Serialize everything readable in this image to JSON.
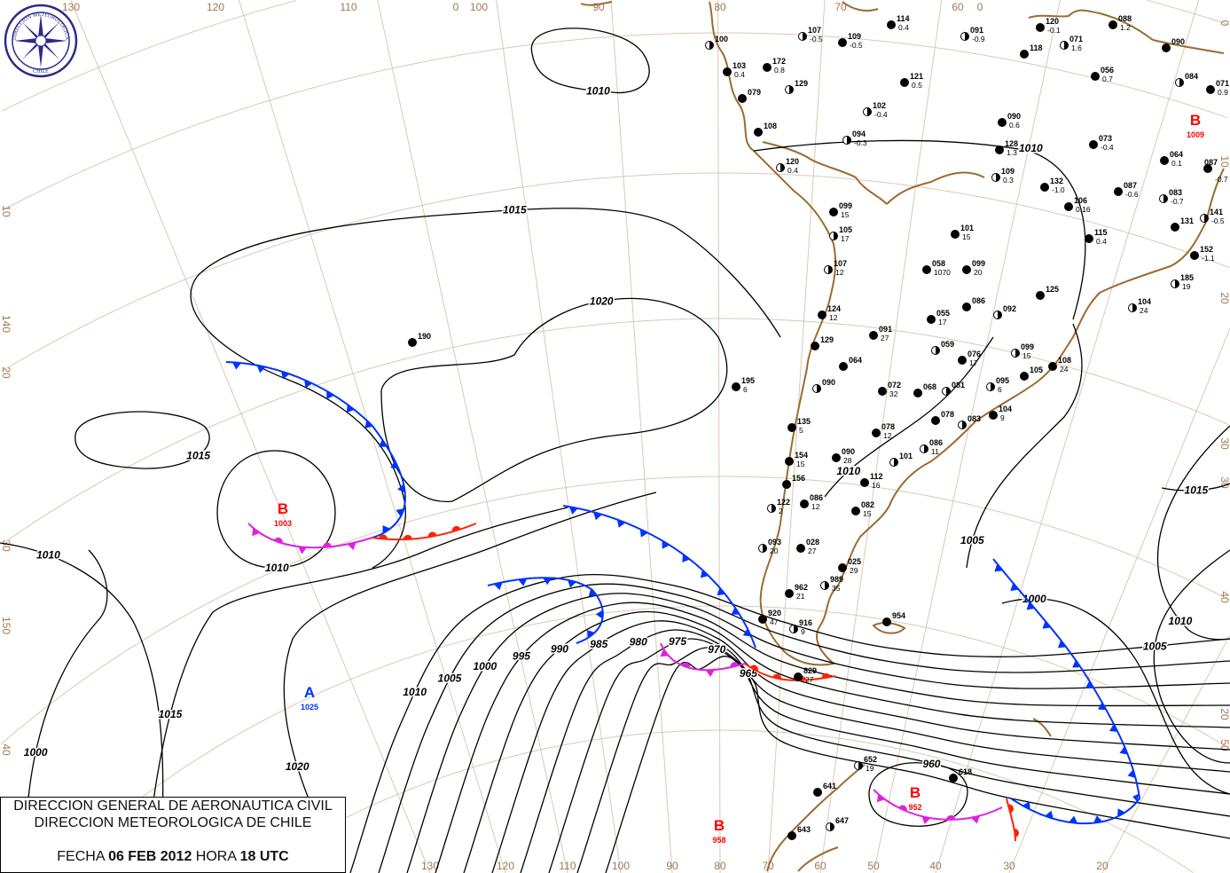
{
  "header": {
    "org_line1": "DIRECCION GENERAL DE AERONAUTICA CIVIL",
    "org_line2": "DIRECCION METEOROLOGICA DE CHILE",
    "date_label": "FECHA",
    "date": "06 FEB 2012",
    "time_label": "HORA",
    "time": "18 UTC"
  },
  "logo": {
    "text_top": "DIRECCION METEOROLOGICA",
    "text_bottom": "CHILE"
  },
  "colors": {
    "cold_front": "#0033ff",
    "warm_front": "#ff2200",
    "occluded_front": "#dd22dd",
    "low": "#ff0000",
    "high": "#0033ff",
    "coastline": "#9c6b30",
    "grid": "#d9c9b4"
  },
  "grid_labels": {
    "top": [
      "130",
      "120",
      "110",
      "0",
      "100",
      "90",
      "80",
      "70",
      "60",
      "0"
    ],
    "left": [
      "10",
      "140",
      "20",
      "30",
      "150",
      "40"
    ],
    "right": [
      "0",
      "10",
      "20",
      "30",
      "30",
      "40",
      "20",
      "50"
    ],
    "bottom": [
      "130",
      "120",
      "110",
      "100",
      "90",
      "80",
      "70",
      "60",
      "50",
      "40",
      "30",
      "20"
    ]
  },
  "pressure_centers": [
    {
      "letter": "B",
      "value": "1003",
      "type": "low"
    },
    {
      "letter": "A",
      "value": "1025",
      "type": "high"
    },
    {
      "letter": "B",
      "value": "958",
      "type": "low"
    },
    {
      "letter": "B",
      "value": "952",
      "type": "low"
    },
    {
      "letter": "B",
      "value": "1009",
      "type": "low"
    }
  ],
  "isobars": [
    {
      "value": "1010"
    },
    {
      "value": "1015"
    },
    {
      "value": "1020"
    },
    {
      "value": "1015"
    },
    {
      "value": "1010"
    },
    {
      "value": "1010"
    },
    {
      "value": "1015"
    },
    {
      "value": "1020"
    },
    {
      "value": "1000"
    },
    {
      "value": "1010"
    },
    {
      "value": "1005"
    },
    {
      "value": "1000"
    },
    {
      "value": "995"
    },
    {
      "value": "990"
    },
    {
      "value": "985"
    },
    {
      "value": "980"
    },
    {
      "value": "975"
    },
    {
      "value": "970"
    },
    {
      "value": "965"
    },
    {
      "value": "1010"
    },
    {
      "value": "1005"
    },
    {
      "value": "1010"
    },
    {
      "value": "1000"
    },
    {
      "value": "1005"
    },
    {
      "value": "960"
    },
    {
      "value": "1015"
    },
    {
      "value": "1010"
    }
  ],
  "fronts": [
    {
      "type": "cold"
    },
    {
      "type": "occluded"
    },
    {
      "type": "warm"
    },
    {
      "type": "cold"
    },
    {
      "type": "cold"
    },
    {
      "type": "occluded"
    },
    {
      "type": "warm"
    },
    {
      "type": "cold"
    },
    {
      "type": "occluded"
    },
    {
      "type": "warm"
    }
  ],
  "stations": [
    {
      "p": "107",
      "v": "-0.5"
    },
    {
      "p": "109",
      "v": "-0.5"
    },
    {
      "p": "114",
      "v": "0.4"
    },
    {
      "p": "091",
      "v": "-0.9"
    },
    {
      "p": "120",
      "v": "-0.1"
    },
    {
      "p": "088",
      "v": "1.2"
    },
    {
      "p": "100",
      "v": ""
    },
    {
      "p": "103",
      "v": "0.4"
    },
    {
      "p": "172",
      "v": "0.8"
    },
    {
      "p": "129",
      "v": ""
    },
    {
      "p": "079",
      "v": ""
    },
    {
      "p": "121",
      "v": "0.5"
    },
    {
      "p": "071",
      "v": "1.6"
    },
    {
      "p": "090",
      "v": ""
    },
    {
      "p": "056",
      "v": "0.7"
    },
    {
      "p": "084",
      "v": ""
    },
    {
      "p": "071",
      "v": "0.9"
    },
    {
      "p": "118",
      "v": ""
    },
    {
      "p": "102",
      "v": "-0.4"
    },
    {
      "p": "108",
      "v": ""
    },
    {
      "p": "090",
      "v": "0.6"
    },
    {
      "p": "094",
      "v": "-0.3"
    },
    {
      "p": "128",
      "v": "1.3"
    },
    {
      "p": "073",
      "v": "-0.4"
    },
    {
      "p": "120",
      "v": "0.4"
    },
    {
      "p": "064",
      "v": "0.1"
    },
    {
      "p": "087",
      "v": "-0.7"
    },
    {
      "p": "109",
      "v": "0.3"
    },
    {
      "p": "132",
      "v": "-1.0"
    },
    {
      "p": "087",
      "v": "-0.6"
    },
    {
      "p": "083",
      "v": "-0.7"
    },
    {
      "p": "106",
      "v": "0.16"
    },
    {
      "p": "099",
      "v": "15"
    },
    {
      "p": "105",
      "v": "17"
    },
    {
      "p": "101",
      "v": "15"
    },
    {
      "p": "115",
      "v": "0.4"
    },
    {
      "p": "141",
      "v": "-0.5"
    },
    {
      "p": "131",
      "v": ""
    },
    {
      "p": "152",
      "v": "-1.1"
    },
    {
      "p": "107",
      "v": "12"
    },
    {
      "p": "058",
      "v": "1070"
    },
    {
      "p": "099",
      "v": "20"
    },
    {
      "p": "185",
      "v": "19"
    },
    {
      "p": "124",
      "v": "12"
    },
    {
      "p": "125",
      "v": ""
    },
    {
      "p": "104",
      "v": "24"
    },
    {
      "p": "055",
      "v": "17"
    },
    {
      "p": "086",
      "v": ""
    },
    {
      "p": "092",
      "v": ""
    },
    {
      "p": "091",
      "v": "27"
    },
    {
      "p": "129",
      "v": ""
    },
    {
      "p": "059",
      "v": ""
    },
    {
      "p": "076",
      "v": "17"
    },
    {
      "p": "064",
      "v": ""
    },
    {
      "p": "099",
      "v": "15"
    },
    {
      "p": "108",
      "v": "24"
    },
    {
      "p": "105",
      "v": ""
    },
    {
      "p": "095",
      "v": "6"
    },
    {
      "p": "195",
      "v": "6"
    },
    {
      "p": "190",
      "v": ""
    },
    {
      "p": "090",
      "v": ""
    },
    {
      "p": "072",
      "v": "32"
    },
    {
      "p": "068",
      "v": ""
    },
    {
      "p": "081",
      "v": ""
    },
    {
      "p": "104",
      "v": "9"
    },
    {
      "p": "078",
      "v": ""
    },
    {
      "p": "083",
      "v": ""
    },
    {
      "p": "135",
      "v": "5"
    },
    {
      "p": "078",
      "v": "12"
    },
    {
      "p": "086",
      "v": "11"
    },
    {
      "p": "154",
      "v": "15"
    },
    {
      "p": "090",
      "v": "28"
    },
    {
      "p": "101",
      "v": ""
    },
    {
      "p": "112",
      "v": "16"
    },
    {
      "p": "156",
      "v": ""
    },
    {
      "p": "122",
      "v": "2"
    },
    {
      "p": "086",
      "v": "12"
    },
    {
      "p": "082",
      "v": "15"
    },
    {
      "p": "093",
      "v": "20"
    },
    {
      "p": "028",
      "v": "27"
    },
    {
      "p": "025",
      "v": "29"
    },
    {
      "p": "989",
      "v": "35"
    },
    {
      "p": "962",
      "v": "21"
    },
    {
      "p": "920",
      "v": "47"
    },
    {
      "p": "916",
      "v": "9"
    },
    {
      "p": "954",
      "v": ""
    },
    {
      "p": "829",
      "v": "27"
    },
    {
      "p": "652",
      "v": "19"
    },
    {
      "p": "618",
      "v": ""
    },
    {
      "p": "641",
      "v": ""
    },
    {
      "p": "647",
      "v": ""
    },
    {
      "p": "643",
      "v": ""
    }
  ]
}
